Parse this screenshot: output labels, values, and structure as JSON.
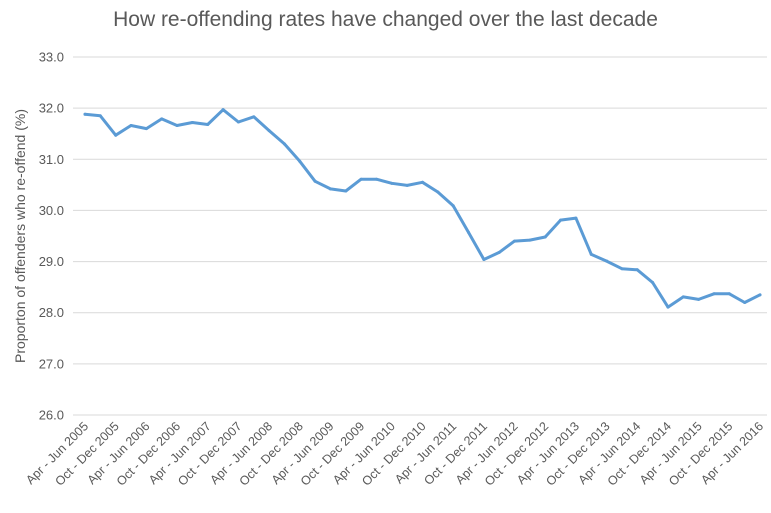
{
  "chart_data": {
    "type": "line",
    "title": "How re-offending rates have changed over the last decade",
    "xlabel": "",
    "ylabel": "Proporton of offenders who re-offend (%)",
    "ylim": [
      26.0,
      33.0
    ],
    "yticks": [
      "26.0",
      "27.0",
      "28.0",
      "29.0",
      "30.0",
      "31.0",
      "32.0",
      "33.0"
    ],
    "grid": true,
    "legend": "none",
    "line_color": "#5b9bd5",
    "x_tick_labels": [
      "Apr - Jun 2005",
      "Oct - Dec 2005",
      "Apr - Jun 2006",
      "Oct - Dec 2006",
      "Apr - Jun 2007",
      "Oct - Dec 2007",
      "Apr - Jun 2008",
      "Oct - Dec 2008",
      "Apr - Jun 2009",
      "Oct - Dec 2009",
      "Apr - Jun 2010",
      "Oct - Dec 2010",
      "Apr - Jun 2011",
      "Oct - Dec 2011",
      "Apr - Jun 2012",
      "Oct - Dec 2012",
      "Apr - Jun 2013",
      "Oct - Dec 2013",
      "Apr - Jun 2014",
      "Oct - Dec 2014",
      "Apr - Jun 2015",
      "Oct - Dec 2015",
      "Apr - Jun 2016"
    ],
    "series": [
      {
        "values": [
          31.88,
          31.85,
          31.47,
          31.66,
          31.6,
          31.79,
          31.66,
          31.72,
          31.68,
          31.97,
          31.73,
          31.83,
          31.56,
          31.3,
          30.96,
          30.57,
          30.42,
          30.38,
          30.61,
          30.61,
          30.53,
          30.49,
          30.55,
          30.36,
          30.09,
          29.57,
          29.04,
          29.18,
          29.4,
          29.42,
          29.48,
          29.81,
          29.85,
          29.14,
          29.01,
          28.86,
          28.84,
          28.59,
          28.11,
          28.31,
          28.26,
          28.37,
          28.37,
          28.2,
          28.35
        ]
      }
    ]
  }
}
